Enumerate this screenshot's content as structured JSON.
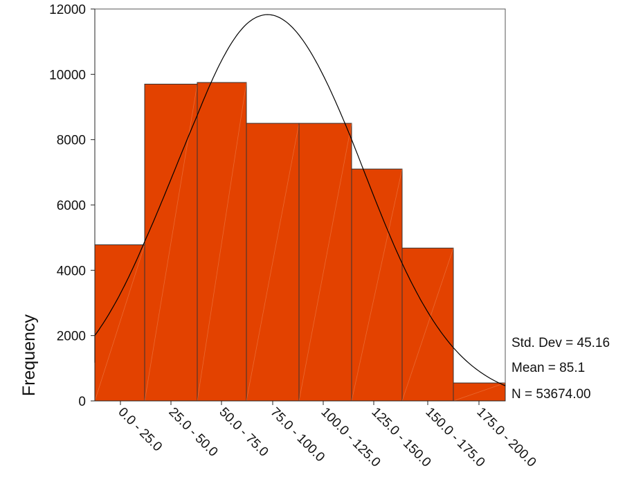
{
  "chart_data": {
    "type": "bar",
    "subtype": "histogram-with-normal-curve",
    "categories": [
      "0.0 - 25.0",
      "25.0 - 50.0",
      "50.0 - 75.0",
      "75.0 - 100.0",
      "100.0 - 125.0",
      "125.0 - 150.0",
      "150.0 - 175.0",
      "175.0 - 200.0"
    ],
    "values": [
      4780,
      9700,
      9750,
      8500,
      8500,
      7100,
      4680,
      550
    ],
    "ylabel": "Frequency",
    "ylim": [
      0,
      12000
    ],
    "yticks": [
      0,
      2000,
      4000,
      6000,
      8000,
      10000,
      12000
    ],
    "bar_color": "#e34200",
    "curve_color": "#000000",
    "normal_curve": {
      "mean": 85.1,
      "std_dev": 45.16
    },
    "stats": {
      "std_dev": "Std. Dev = 45.16",
      "mean": "Mean = 85.1",
      "n": "N = 53674.00"
    }
  }
}
